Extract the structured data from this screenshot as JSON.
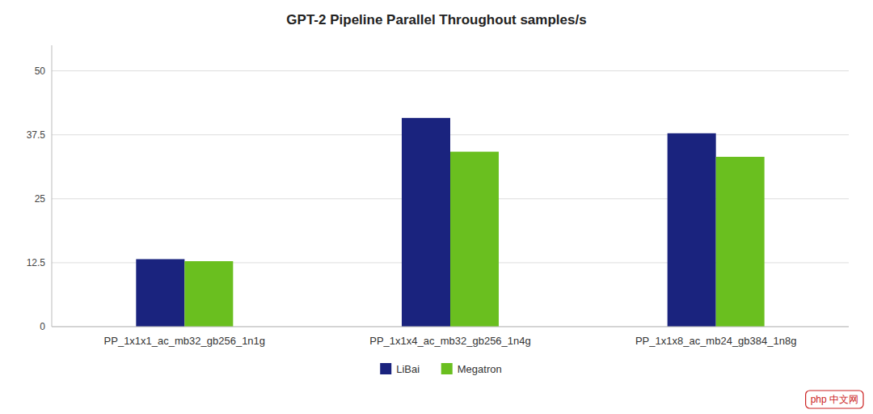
{
  "chart_data": {
    "type": "bar",
    "title": "GPT-2 Pipeline Parallel Throughout samples/s",
    "categories": [
      "PP_1x1x1_ac_mb32_gb256_1n1g",
      "PP_1x1x4_ac_mb32_gb256_1n4g",
      "PP_1x1x8_ac_mb24_gb384_1n8g"
    ],
    "series": [
      {
        "name": "LiBai",
        "color": "#1a237e",
        "values": [
          13.2,
          40.8,
          37.8
        ]
      },
      {
        "name": "Megatron",
        "color": "#6abf1f",
        "values": [
          12.8,
          34.2,
          33.2
        ]
      }
    ],
    "ylim": [
      0,
      55
    ],
    "yticks": [
      0,
      12.5,
      25,
      37.5,
      50
    ],
    "grid": true,
    "legend": "bottom",
    "annotations": [
      "php 中文网"
    ]
  }
}
